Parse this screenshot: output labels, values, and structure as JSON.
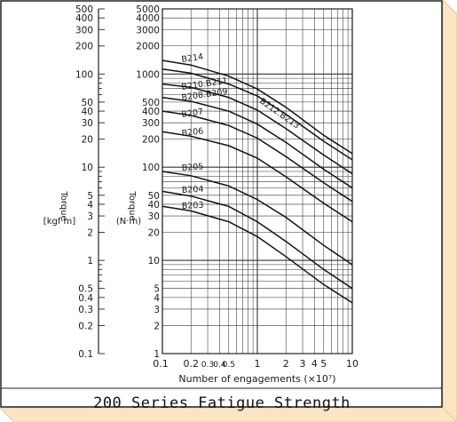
{
  "caption": "200 Series Fatigue Strength",
  "colors": {
    "panel": "#fbe5c4",
    "panel_edge": "#e9c89a",
    "ink": "#1a1a1a"
  },
  "chart_data": {
    "type": "line",
    "title": "200 Series Fatigue Strength",
    "xlabel": "Number of engagements (×10⁷)",
    "ylabel_left": "Torque\n[kgf·m]",
    "ylabel_right": "Torque\n(N·m)",
    "x_scale": "log",
    "y_scale": "log",
    "xlim": [
      0.1,
      10
    ],
    "ylim_nm": [
      1,
      5000
    ],
    "ylim_kgfm": [
      0.1,
      500
    ],
    "grid": true,
    "x_ticks": [
      "0.1",
      "0.2",
      "0.3",
      "0.4",
      "0.5",
      "1",
      "2",
      "3",
      "4",
      "5",
      "10"
    ],
    "x_tick_labels": [
      "0.1",
      "0.2",
      "0.3",
      "0.4",
      "0.5",
      "1",
      "2",
      "3",
      "4",
      "5",
      "10"
    ],
    "y_ticks_nm": [
      "1",
      "2",
      "3",
      "4",
      "5",
      "10",
      "20",
      "30",
      "40",
      "50",
      "100",
      "200",
      "300",
      "400",
      "500",
      "1000",
      "2000",
      "3000",
      "4000",
      "5000"
    ],
    "y_ticks_kgfm": [
      "0.1",
      "0.2",
      "0.3",
      "0.4",
      "0.5",
      "1",
      "2",
      "3",
      "4",
      "5",
      "10",
      "20",
      "30",
      "40",
      "50",
      "100",
      "200",
      "300",
      "400",
      "500"
    ],
    "x": [
      0.1,
      0.2,
      0.5,
      1,
      2,
      5,
      10
    ],
    "series": [
      {
        "name": "B214",
        "values": [
          1400,
          1250,
          950,
          690,
          440,
          220,
          140
        ]
      },
      {
        "name": "B212.B213",
        "values": [
          1130,
          1020,
          780,
          580,
          370,
          190,
          120
        ]
      },
      {
        "name": "B210.B211",
        "values": [
          780,
          720,
          560,
          410,
          260,
          135,
          85
        ]
      },
      {
        "name": "B208.B209",
        "values": [
          560,
          510,
          400,
          290,
          185,
          95,
          60
        ]
      },
      {
        "name": "B207",
        "values": [
          400,
          360,
          280,
          205,
          130,
          68,
          43
        ]
      },
      {
        "name": "B206",
        "values": [
          240,
          215,
          170,
          125,
          79,
          41,
          26
        ]
      },
      {
        "name": "B205",
        "values": [
          90,
          81,
          63,
          45,
          29,
          14.5,
          9
        ]
      },
      {
        "name": "B204",
        "values": [
          55,
          49,
          38,
          26,
          16,
          8,
          5
        ]
      },
      {
        "name": "B203",
        "values": [
          38,
          34,
          26,
          18,
          11,
          5.5,
          3.5
        ]
      }
    ]
  }
}
